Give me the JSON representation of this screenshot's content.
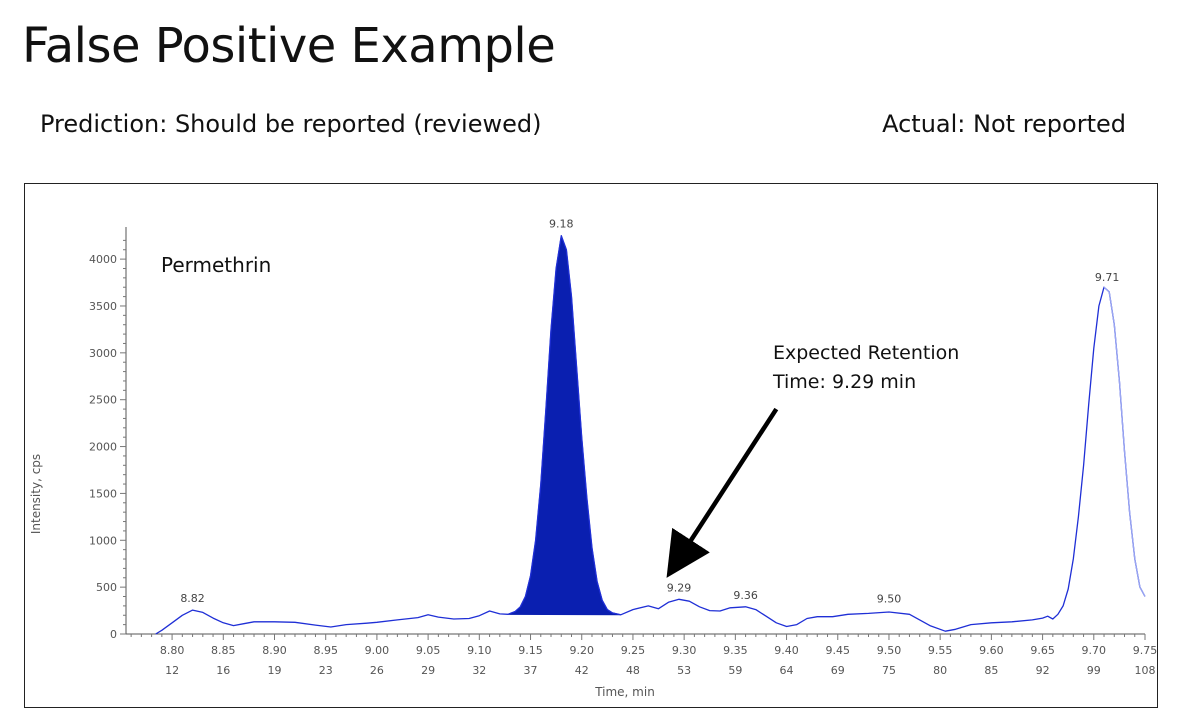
{
  "slide": {
    "title": "False Positive Example",
    "prediction": "Prediction: Should be reported (reviewed)",
    "actual": "Actual: Not reported"
  },
  "chart_data": {
    "type": "line",
    "xlabel": "Time, min",
    "ylabel": "Intensity, cps",
    "xlim": [
      8.755,
      9.75
    ],
    "ylim": [
      0,
      4300
    ],
    "yticks": [
      0,
      500,
      1000,
      1500,
      2000,
      2500,
      3000,
      3500,
      4000
    ],
    "xticks": [
      8.8,
      8.85,
      8.9,
      8.95,
      9.0,
      9.05,
      9.1,
      9.15,
      9.2,
      9.25,
      9.3,
      9.35,
      9.4,
      9.45,
      9.5,
      9.55,
      9.6,
      9.65,
      9.7,
      9.75
    ],
    "xtick_labels": [
      "8.80",
      "8.85",
      "8.90",
      "8.95",
      "9.00",
      "9.05",
      "9.10",
      "9.15",
      "9.20",
      "9.25",
      "9.30",
      "9.35",
      "9.40",
      "9.45",
      "9.50",
      "9.55",
      "9.60",
      "9.65",
      "9.70",
      "9.75"
    ],
    "scan_labels": [
      "12",
      "16",
      "19",
      "23",
      "26",
      "29",
      "32",
      "37",
      "42",
      "48",
      "53",
      "59",
      "64",
      "69",
      "75",
      "80",
      "85",
      "92",
      "99",
      "108"
    ],
    "compound": "Permethrin",
    "peak_labels": [
      {
        "label": "8.82",
        "x": 8.82,
        "y": 255
      },
      {
        "label": "9.18",
        "x": 9.18,
        "y": 4250
      },
      {
        "label": "9.29",
        "x": 9.295,
        "y": 370
      },
      {
        "label": "9.36",
        "x": 9.36,
        "y": 290
      },
      {
        "label": "9.50",
        "x": 9.5,
        "y": 250
      },
      {
        "label": "9.71",
        "x": 9.713,
        "y": 3680
      }
    ],
    "annotation": {
      "line1": "Expected Retention",
      "line2": "Time: 9.29 min",
      "arrow_from": [
        9.39,
        2400
      ],
      "arrow_to": [
        9.29,
        720
      ]
    },
    "integrated_peak": {
      "start": 9.128,
      "end": 9.238,
      "apex_rt": 9.18,
      "apex_intensity": 4250
    },
    "series": [
      {
        "name": "chromatogram",
        "color": "#1f2fd6",
        "points": [
          [
            8.784,
            0
          ],
          [
            8.79,
            40
          ],
          [
            8.8,
            120
          ],
          [
            8.81,
            200
          ],
          [
            8.82,
            255
          ],
          [
            8.83,
            230
          ],
          [
            8.84,
            170
          ],
          [
            8.85,
            120
          ],
          [
            8.86,
            90
          ],
          [
            8.87,
            110
          ],
          [
            8.88,
            130
          ],
          [
            8.9,
            130
          ],
          [
            8.92,
            125
          ],
          [
            8.94,
            95
          ],
          [
            8.955,
            75
          ],
          [
            8.97,
            100
          ],
          [
            8.99,
            115
          ],
          [
            9.0,
            125
          ],
          [
            9.02,
            150
          ],
          [
            9.04,
            175
          ],
          [
            9.05,
            205
          ],
          [
            9.06,
            180
          ],
          [
            9.075,
            160
          ],
          [
            9.09,
            165
          ],
          [
            9.1,
            195
          ],
          [
            9.11,
            245
          ],
          [
            9.12,
            215
          ],
          [
            9.128,
            210
          ],
          [
            9.135,
            240
          ],
          [
            9.14,
            290
          ],
          [
            9.145,
            400
          ],
          [
            9.15,
            620
          ],
          [
            9.155,
            1000
          ],
          [
            9.16,
            1600
          ],
          [
            9.165,
            2400
          ],
          [
            9.17,
            3250
          ],
          [
            9.175,
            3900
          ],
          [
            9.18,
            4250
          ],
          [
            9.185,
            4100
          ],
          [
            9.19,
            3600
          ],
          [
            9.195,
            2850
          ],
          [
            9.2,
            2100
          ],
          [
            9.205,
            1450
          ],
          [
            9.21,
            920
          ],
          [
            9.215,
            560
          ],
          [
            9.22,
            360
          ],
          [
            9.225,
            260
          ],
          [
            9.23,
            225
          ],
          [
            9.238,
            205
          ],
          [
            9.25,
            260
          ],
          [
            9.265,
            300
          ],
          [
            9.275,
            270
          ],
          [
            9.285,
            340
          ],
          [
            9.295,
            370
          ],
          [
            9.305,
            350
          ],
          [
            9.315,
            290
          ],
          [
            9.325,
            250
          ],
          [
            9.335,
            245
          ],
          [
            9.345,
            280
          ],
          [
            9.36,
            290
          ],
          [
            9.37,
            260
          ],
          [
            9.38,
            190
          ],
          [
            9.39,
            120
          ],
          [
            9.4,
            80
          ],
          [
            9.41,
            100
          ],
          [
            9.42,
            165
          ],
          [
            9.43,
            185
          ],
          [
            9.445,
            185
          ],
          [
            9.46,
            210
          ],
          [
            9.48,
            220
          ],
          [
            9.5,
            235
          ],
          [
            9.52,
            210
          ],
          [
            9.53,
            150
          ],
          [
            9.54,
            90
          ],
          [
            9.555,
            30
          ],
          [
            9.565,
            50
          ],
          [
            9.58,
            100
          ],
          [
            9.6,
            120
          ],
          [
            9.62,
            130
          ],
          [
            9.64,
            150
          ],
          [
            9.65,
            170
          ],
          [
            9.655,
            190
          ],
          [
            9.66,
            160
          ],
          [
            9.665,
            210
          ],
          [
            9.67,
            300
          ],
          [
            9.675,
            480
          ],
          [
            9.68,
            800
          ],
          [
            9.685,
            1250
          ],
          [
            9.69,
            1800
          ],
          [
            9.695,
            2450
          ],
          [
            9.7,
            3050
          ],
          [
            9.705,
            3500
          ],
          [
            9.71,
            3700
          ],
          [
            9.715,
            3650
          ],
          [
            9.72,
            3300
          ],
          [
            9.725,
            2700
          ],
          [
            9.73,
            1950
          ],
          [
            9.735,
            1300
          ],
          [
            9.74,
            800
          ],
          [
            9.745,
            500
          ],
          [
            9.75,
            400
          ]
        ]
      }
    ]
  }
}
